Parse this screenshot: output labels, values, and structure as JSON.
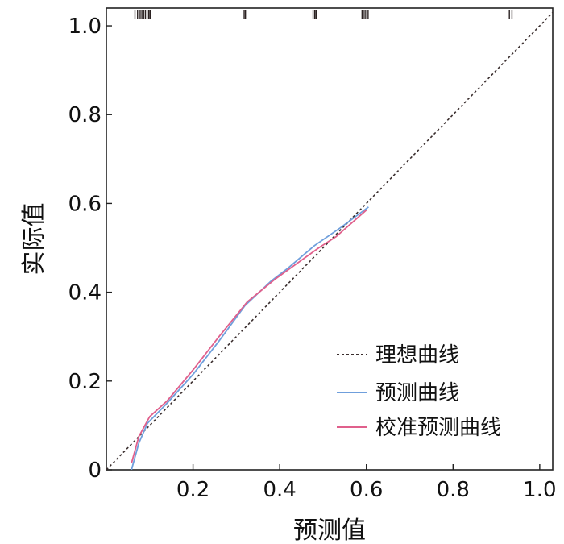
{
  "chart_data": {
    "type": "line",
    "xlabel": "预测值",
    "ylabel": "实际值",
    "xlim": [
      0.0,
      1.03
    ],
    "ylim": [
      0.0,
      1.04
    ],
    "x_ticks": [
      0.2,
      0.4,
      0.6,
      0.8,
      1.0
    ],
    "x_tick_labels": [
      "0.2",
      "0.4",
      "0.6",
      "0.8",
      "1.0"
    ],
    "y_ticks": [
      0,
      0.2,
      0.4,
      0.6,
      0.8,
      1.0
    ],
    "y_tick_labels": [
      "0",
      "0.2",
      "0.4",
      "0.6",
      "0.8",
      "1.0"
    ],
    "grid": false,
    "legend_position": "bottom-right",
    "series": [
      {
        "name": "理想曲线",
        "style": "dotted",
        "color": "#3a2e2e",
        "x": [
          0.0,
          1.03
        ],
        "y": [
          0.0,
          1.03
        ]
      },
      {
        "name": "预测曲线",
        "style": "solid",
        "color": "#6f9fdc",
        "x": [
          0.058,
          0.075,
          0.095,
          0.14,
          0.2,
          0.26,
          0.32,
          0.38,
          0.42,
          0.48,
          0.54,
          0.605
        ],
        "y": [
          0.0,
          0.06,
          0.105,
          0.15,
          0.215,
          0.29,
          0.37,
          0.425,
          0.455,
          0.505,
          0.545,
          0.592
        ]
      },
      {
        "name": "校准预测曲线",
        "style": "solid",
        "color": "#e0608c",
        "x": [
          0.058,
          0.075,
          0.1,
          0.14,
          0.2,
          0.26,
          0.325,
          0.39,
          0.44,
          0.49,
          0.53,
          0.6
        ],
        "y": [
          0.015,
          0.075,
          0.12,
          0.155,
          0.225,
          0.3,
          0.378,
          0.43,
          0.465,
          0.5,
          0.525,
          0.585
        ]
      }
    ],
    "rug_x": [
      0.066,
      0.072,
      0.078,
      0.082,
      0.086,
      0.09,
      0.094,
      0.098,
      0.101,
      0.318,
      0.321,
      0.477,
      0.481,
      0.484,
      0.59,
      0.593,
      0.597,
      0.601,
      0.604,
      0.93,
      0.936
    ]
  }
}
